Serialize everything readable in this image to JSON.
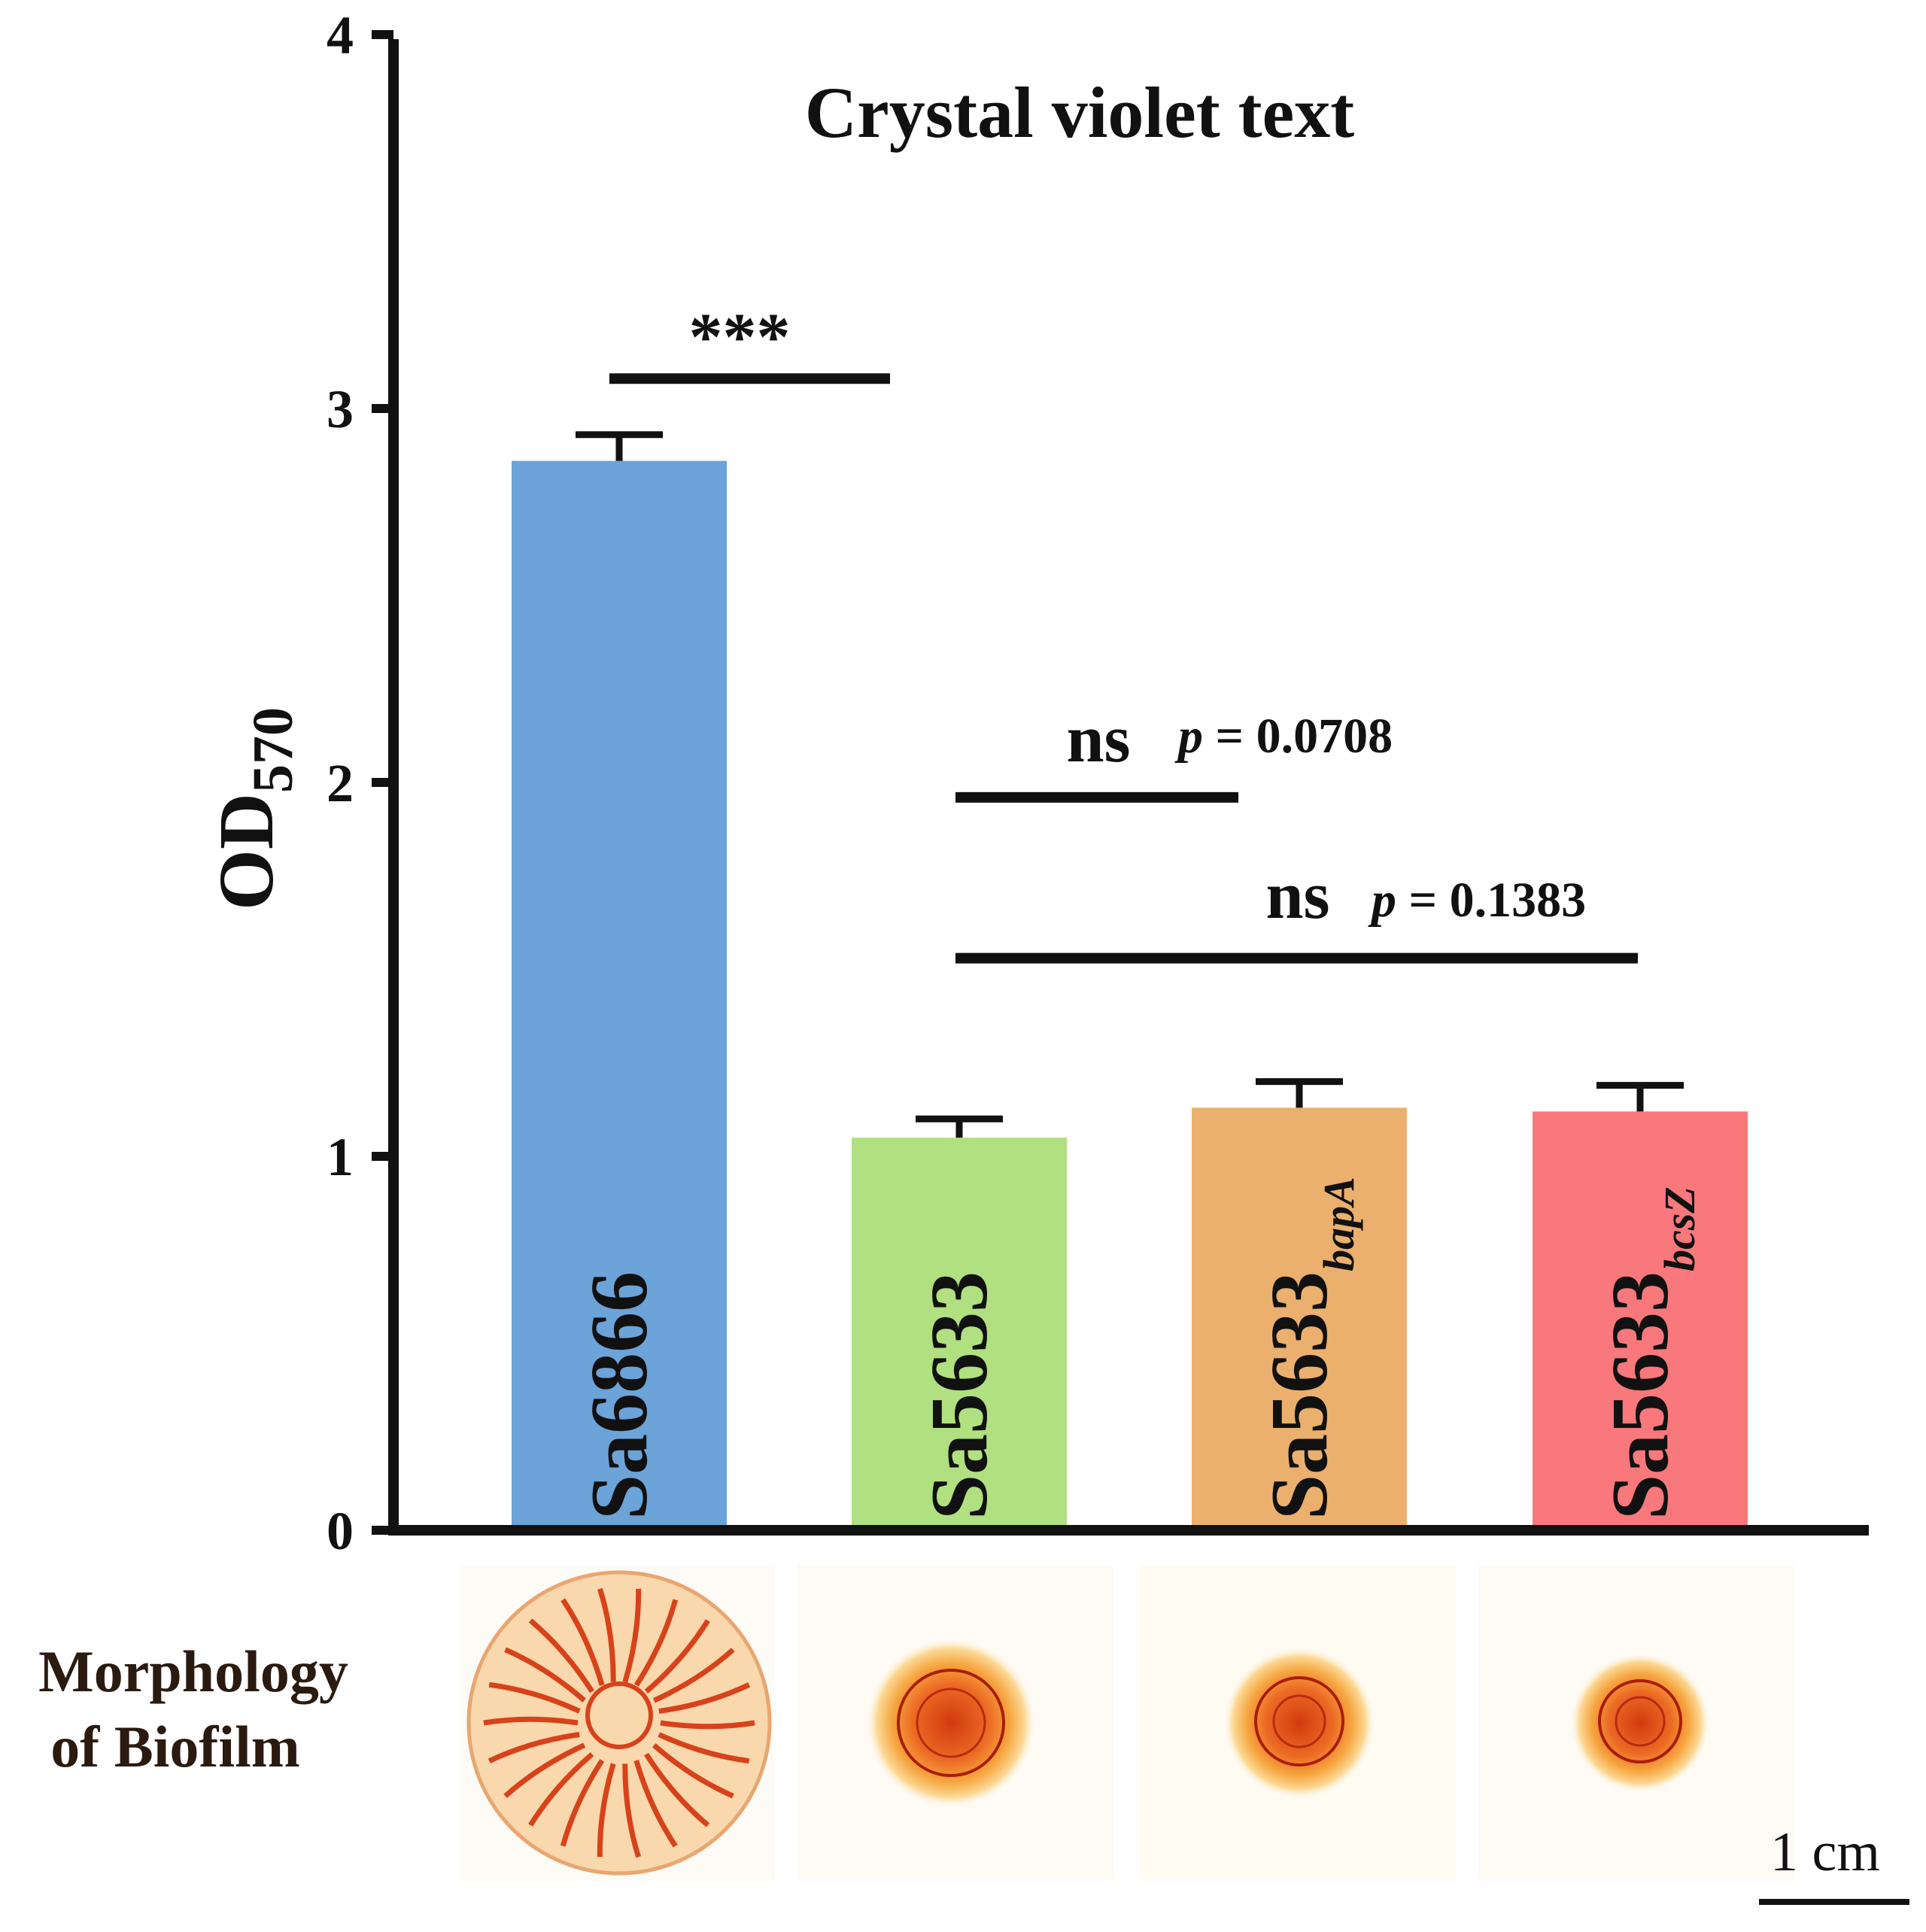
{
  "chart_data": {
    "type": "bar",
    "title": "Crystal violet text",
    "ylabel": "OD",
    "ylabel_subscript": "570",
    "ylim": [
      0,
      4
    ],
    "yticks": [
      "0",
      "1",
      "2",
      "3",
      "4"
    ],
    "categories": [
      "Sa6866",
      "Sa5633",
      "Sa5633",
      "Sa5633"
    ],
    "category_subscripts": [
      "",
      "",
      "bapA",
      "bcsZ"
    ],
    "values": [
      2.86,
      1.05,
      1.13,
      1.12
    ],
    "errors": [
      0.07,
      0.05,
      0.07,
      0.07
    ],
    "colors": [
      "#6CA3D8",
      "#B0E080",
      "#EBB06D",
      "#F8787C"
    ],
    "significance": [
      {
        "from": 0,
        "to": 1,
        "y": 3.08,
        "label": "***",
        "p": ""
      },
      {
        "from": 1,
        "to": 2,
        "y": 1.96,
        "label": "ns",
        "p_prefix": "p",
        "p": " = 0.0708"
      },
      {
        "from": 1,
        "to": 3,
        "y": 1.53,
        "label": "ns",
        "p_prefix": "p",
        "p": " = 0.1383"
      }
    ]
  },
  "morphology": {
    "label_line1": "Morphology",
    "label_line2": "of Biofilm"
  },
  "scale_bar": {
    "label": "1 cm"
  }
}
